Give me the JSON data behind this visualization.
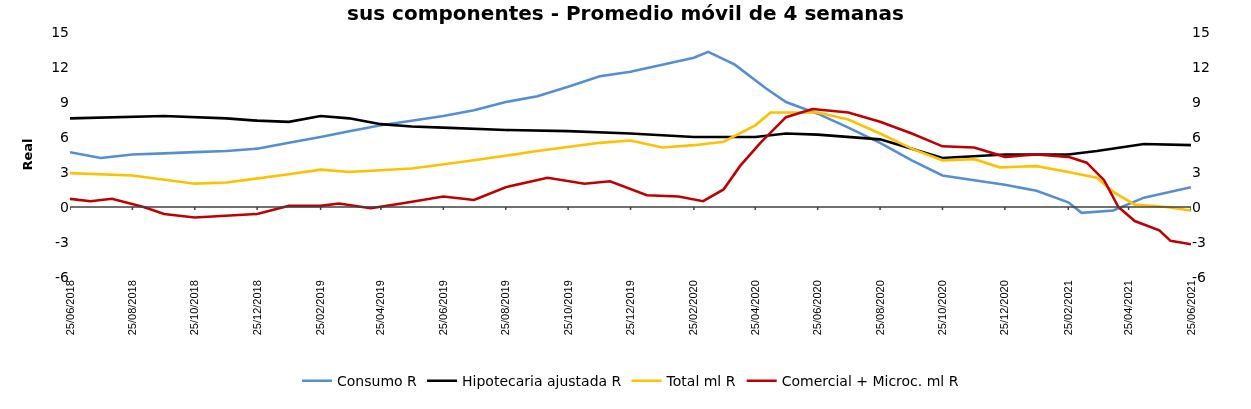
{
  "chart_data": {
    "type": "line",
    "title": "sus componentes - Promedio móvil de 4 semanas",
    "ylabel": "Real",
    "ylim": [
      -6,
      15
    ],
    "yticks": [
      -6,
      -3,
      0,
      3,
      6,
      9,
      12,
      15
    ],
    "y2lim": [
      -6,
      15
    ],
    "y2ticks": [
      -6,
      -3,
      0,
      3,
      6,
      9,
      12,
      15
    ],
    "xlim": [
      "2018-06-25",
      "2021-06-25"
    ],
    "xticks": [
      {
        "value": "2018-06-25",
        "label": "25/06/2018"
      },
      {
        "value": "2018-08-25",
        "label": "25/08/2018"
      },
      {
        "value": "2018-10-25",
        "label": "25/10/2018"
      },
      {
        "value": "2018-12-25",
        "label": "25/12/2018"
      },
      {
        "value": "2019-02-25",
        "label": "25/02/2019"
      },
      {
        "value": "2019-04-25",
        "label": "25/04/2019"
      },
      {
        "value": "2019-06-25",
        "label": "25/06/2019"
      },
      {
        "value": "2019-08-25",
        "label": "25/08/2019"
      },
      {
        "value": "2019-10-25",
        "label": "25/10/2019"
      },
      {
        "value": "2019-12-25",
        "label": "25/12/2019"
      },
      {
        "value": "2020-02-25",
        "label": "25/02/2020"
      },
      {
        "value": "2020-04-25",
        "label": "25/04/2020"
      },
      {
        "value": "2020-06-25",
        "label": "25/06/2020"
      },
      {
        "value": "2020-08-25",
        "label": "25/08/2020"
      },
      {
        "value": "2020-10-25",
        "label": "25/10/2020"
      },
      {
        "value": "2020-12-25",
        "label": "25/12/2020"
      },
      {
        "value": "2021-02-25",
        "label": "25/02/2021"
      },
      {
        "value": "2021-04-25",
        "label": "25/04/2021"
      },
      {
        "value": "2021-06-25",
        "label": "25/06/2021"
      }
    ],
    "legend": "bottom",
    "marker": "none",
    "line_style": "solid",
    "series": [
      {
        "name": "Consumo R",
        "color": "#558ed5",
        "x": [
          "2018-06-25",
          "2018-07-25",
          "2018-08-25",
          "2018-09-25",
          "2018-10-25",
          "2018-11-25",
          "2018-12-25",
          "2019-01-25",
          "2019-02-25",
          "2019-03-25",
          "2019-04-25",
          "2019-05-25",
          "2019-06-25",
          "2019-07-25",
          "2019-08-25",
          "2019-09-25",
          "2019-10-25",
          "2019-11-25",
          "2019-12-25",
          "2020-01-25",
          "2020-02-25",
          "2020-03-10",
          "2020-04-05",
          "2020-05-05",
          "2020-05-25",
          "2020-06-25",
          "2020-07-25",
          "2020-08-25",
          "2020-09-25",
          "2020-10-25",
          "2020-11-25",
          "2020-12-25",
          "2021-01-25",
          "2021-02-25",
          "2021-03-10",
          "2021-04-10",
          "2021-05-10",
          "2021-06-25"
        ],
        "values": [
          4.7,
          4.2,
          4.5,
          4.6,
          4.7,
          4.8,
          5.0,
          5.5,
          6.0,
          6.5,
          7.0,
          7.4,
          7.8,
          8.3,
          9.0,
          9.5,
          10.3,
          11.2,
          11.6,
          12.2,
          12.8,
          13.3,
          12.2,
          10.2,
          9.0,
          8.0,
          6.8,
          5.5,
          4.0,
          2.7,
          2.3,
          1.9,
          1.4,
          0.4,
          -0.5,
          -0.3,
          0.8,
          1.7
        ]
      },
      {
        "name": "Hipotecaria ajustada R",
        "color": "#000000",
        "x": [
          "2018-06-25",
          "2018-09-25",
          "2018-11-25",
          "2018-12-25",
          "2019-01-25",
          "2019-02-25",
          "2019-03-25",
          "2019-04-25",
          "2019-05-25",
          "2019-06-25",
          "2019-08-25",
          "2019-10-25",
          "2019-12-25",
          "2020-02-25",
          "2020-04-25",
          "2020-05-25",
          "2020-06-25",
          "2020-08-25",
          "2020-09-25",
          "2020-10-25",
          "2020-12-25",
          "2021-02-25",
          "2021-03-25",
          "2021-05-10",
          "2021-06-25"
        ],
        "values": [
          7.6,
          7.8,
          7.6,
          7.4,
          7.3,
          7.8,
          7.6,
          7.1,
          6.9,
          6.8,
          6.6,
          6.5,
          6.3,
          6.0,
          6.0,
          6.3,
          6.2,
          5.8,
          5.0,
          4.2,
          4.5,
          4.5,
          4.8,
          5.4,
          5.3
        ]
      },
      {
        "name": "Total ml R",
        "color": "#ffc000",
        "x": [
          "2018-06-25",
          "2018-08-25",
          "2018-10-25",
          "2018-11-25",
          "2019-01-25",
          "2019-02-25",
          "2019-03-25",
          "2019-05-25",
          "2019-07-25",
          "2019-09-25",
          "2019-11-25",
          "2019-12-25",
          "2020-01-25",
          "2020-02-25",
          "2020-03-25",
          "2020-04-25",
          "2020-05-10",
          "2020-06-25",
          "2020-07-25",
          "2020-08-25",
          "2020-09-25",
          "2020-10-25",
          "2020-11-25",
          "2020-12-20",
          "2021-01-25",
          "2021-02-25",
          "2021-03-25",
          "2021-04-10",
          "2021-05-01",
          "2021-06-01",
          "2021-06-25"
        ],
        "values": [
          2.9,
          2.7,
          2.0,
          2.1,
          2.8,
          3.2,
          3.0,
          3.3,
          4.0,
          4.8,
          5.5,
          5.7,
          5.1,
          5.3,
          5.6,
          7.0,
          8.1,
          8.1,
          7.5,
          6.3,
          5.0,
          4.0,
          4.1,
          3.4,
          3.5,
          3.0,
          2.5,
          1.3,
          0.2,
          0.0,
          -0.3
        ]
      },
      {
        "name": "Comercial + Microc. ml R",
        "color": "#c00000",
        "x": [
          "2018-06-25",
          "2018-07-15",
          "2018-08-05",
          "2018-09-05",
          "2018-09-25",
          "2018-10-25",
          "2018-12-25",
          "2019-01-25",
          "2019-02-25",
          "2019-03-15",
          "2019-04-15",
          "2019-05-15",
          "2019-06-25",
          "2019-07-25",
          "2019-08-25",
          "2019-10-05",
          "2019-11-10",
          "2019-12-05",
          "2020-01-10",
          "2020-02-10",
          "2020-03-05",
          "2020-03-25",
          "2020-04-10",
          "2020-04-30",
          "2020-05-25",
          "2020-06-20",
          "2020-07-25",
          "2020-08-25",
          "2020-09-25",
          "2020-10-25",
          "2020-11-25",
          "2020-12-25",
          "2021-01-25",
          "2021-02-25",
          "2021-03-15",
          "2021-04-01",
          "2021-04-15",
          "2021-05-01",
          "2021-05-25",
          "2021-06-05",
          "2021-06-25"
        ],
        "values": [
          0.7,
          0.5,
          0.7,
          0.0,
          -0.6,
          -0.9,
          -0.6,
          0.1,
          0.1,
          0.3,
          -0.1,
          0.3,
          0.9,
          0.6,
          1.7,
          2.5,
          2.0,
          2.2,
          1.0,
          0.9,
          0.5,
          1.5,
          3.5,
          5.5,
          7.7,
          8.4,
          8.1,
          7.3,
          6.3,
          5.2,
          5.1,
          4.3,
          4.5,
          4.3,
          3.8,
          2.3,
          0.0,
          -1.2,
          -2.0,
          -2.9,
          -3.2
        ]
      }
    ]
  }
}
